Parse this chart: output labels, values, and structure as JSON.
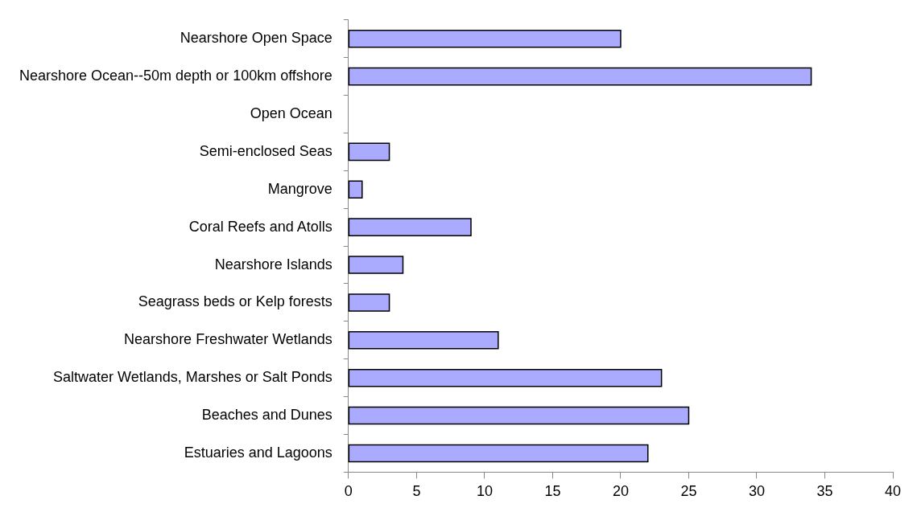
{
  "chart_data": {
    "type": "bar",
    "orientation": "horizontal",
    "categories": [
      "Nearshore Open Space",
      "Nearshore Ocean--50m depth or 100km offshore",
      "Open Ocean",
      "Semi-enclosed Seas",
      "Mangrove",
      "Coral Reefs and Atolls",
      "Nearshore Islands",
      "Seagrass beds or Kelp forests",
      "Nearshore Freshwater Wetlands",
      "Saltwater Wetlands, Marshes or Salt Ponds",
      "Beaches and Dunes",
      "Estuaries and Lagoons"
    ],
    "values": [
      20,
      34,
      0,
      3,
      1,
      9,
      4,
      3,
      11,
      23,
      25,
      22
    ],
    "color": "#aaaaff",
    "xlim": [
      0,
      40
    ],
    "xticks": [
      0,
      5,
      10,
      15,
      20,
      25,
      30,
      35,
      40
    ],
    "grid": false,
    "legend": false
  }
}
